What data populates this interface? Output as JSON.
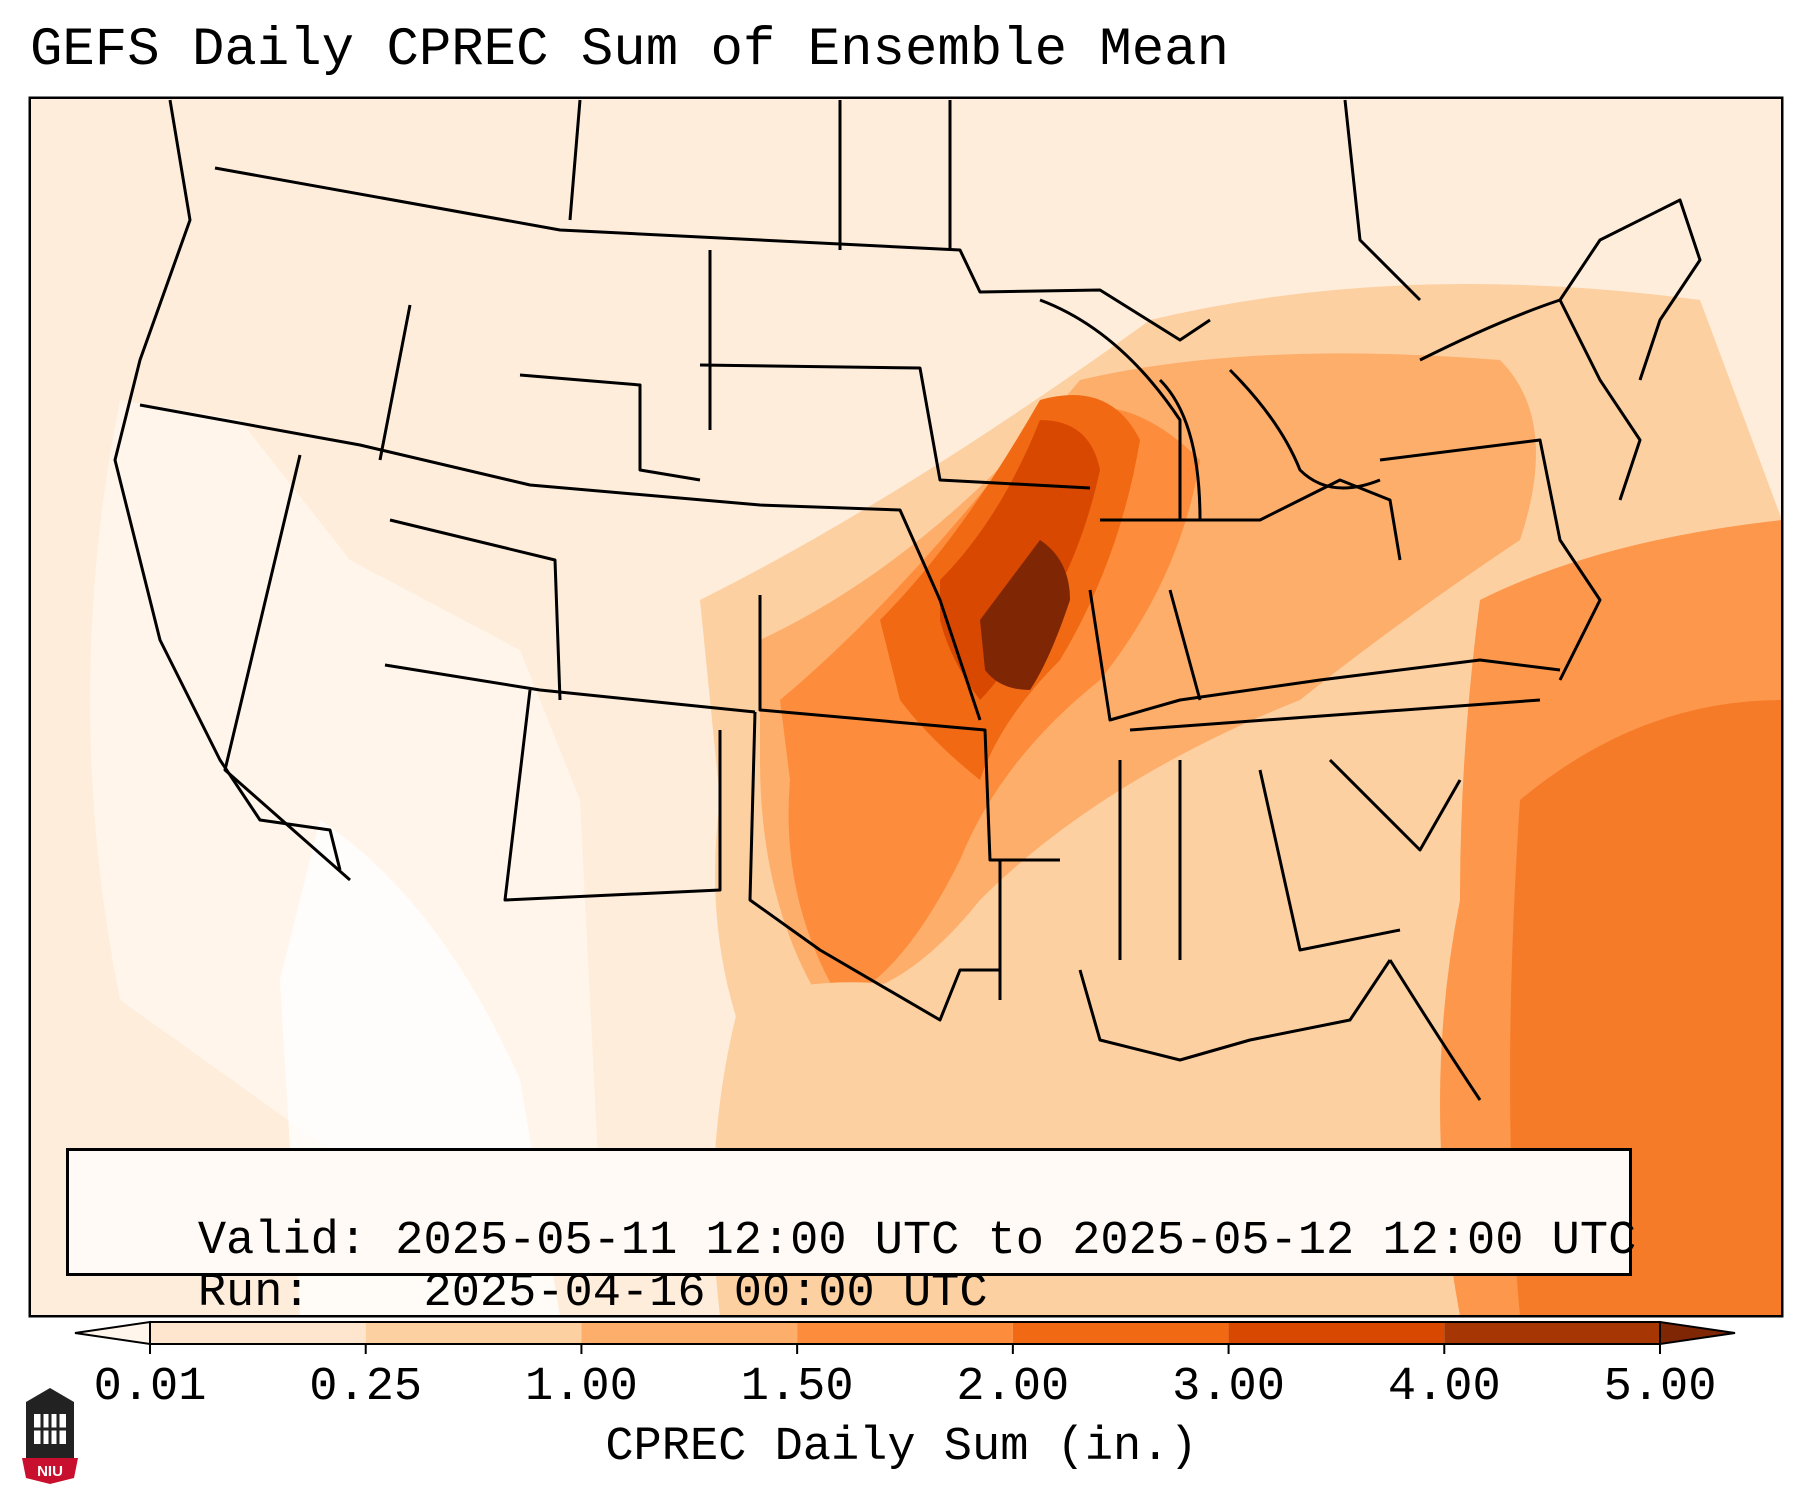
{
  "title": "GEFS Daily CPREC Sum of Ensemble Mean",
  "info": {
    "valid_label": "Valid:",
    "valid_value": "2025-05-11 12:00 UTC to 2025-05-12 12:00 UTC",
    "run_label": "Run:",
    "run_value": "2025-04-16 00:00 UTC"
  },
  "colorbar": {
    "label": "CPREC Daily Sum (in.)",
    "ticks": [
      "0.01",
      "0.25",
      "1.00",
      "1.50",
      "2.00",
      "3.00",
      "4.00",
      "5.00"
    ],
    "colors": [
      "#fff5eb",
      "#fee6ce",
      "#fdd0a2",
      "#fdae6b",
      "#fd8d3c",
      "#f16913",
      "#d94801",
      "#a63603",
      "#7f2704"
    ]
  },
  "logo": {
    "text": "NIU",
    "colors": {
      "red": "#c8102e",
      "dark": "#222222"
    }
  }
}
